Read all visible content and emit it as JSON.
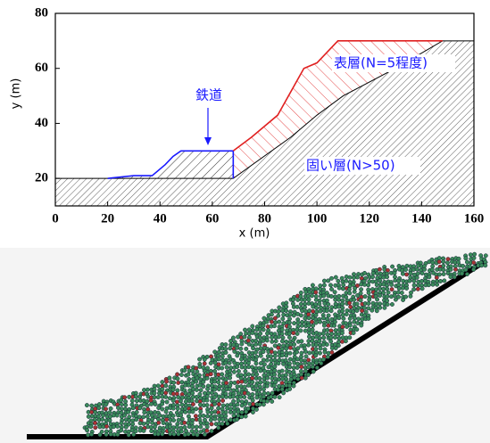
{
  "chart_data": {
    "type": "line",
    "xlabel": "x (m)",
    "ylabel": "y (m)",
    "xlim": [
      0,
      160
    ],
    "ylim": [
      10,
      80
    ],
    "xticks": [
      0,
      20,
      40,
      60,
      80,
      100,
      120,
      140,
      160
    ],
    "yticks": [
      20,
      40,
      60,
      80
    ],
    "annotations": [
      "鉄道",
      "表層(N=5程度)",
      "固い層(N>50)"
    ],
    "series": [
      {
        "color": "#1a1aff",
        "x": [
          20,
          30,
          37,
          42,
          45,
          48,
          68,
          68
        ],
        "values": [
          20,
          21,
          21,
          25,
          28,
          30,
          30,
          20
        ]
      },
      {
        "color": "#e02020",
        "x": [
          68,
          75,
          85,
          95,
          100,
          108,
          148
        ],
        "values": [
          30,
          35,
          43,
          60,
          62,
          70,
          70
        ]
      },
      {
        "color": "#000000",
        "x": [
          0,
          68,
          90,
          100,
          110,
          130,
          148,
          160
        ],
        "values": [
          20,
          20,
          35,
          43,
          50,
          60,
          70,
          70
        ]
      }
    ]
  }
}
